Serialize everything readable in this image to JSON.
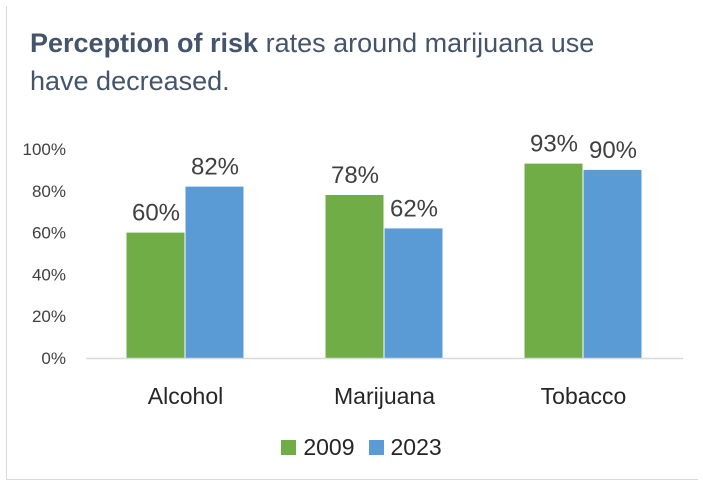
{
  "title": {
    "bold": "Perception of risk",
    "rest": " rates around marijuana use have decreased."
  },
  "chart_data": {
    "type": "bar",
    "categories": [
      "Alcohol",
      "Marijuana",
      "Tobacco"
    ],
    "series": [
      {
        "name": "2009",
        "values": [
          60,
          78,
          93
        ],
        "color": "#70ad47",
        "labels": [
          "60%",
          "78%",
          "93%"
        ]
      },
      {
        "name": "2023",
        "values": [
          82,
          62,
          90
        ],
        "color": "#5b9bd5",
        "labels": [
          "82%",
          "62%",
          "90%"
        ]
      }
    ],
    "ylim": [
      0,
      100
    ],
    "yticks": [
      "0%",
      "20%",
      "40%",
      "60%",
      "80%",
      "100%"
    ],
    "gridlines": false,
    "legend_position": "bottom",
    "axis_color": "#d9d9d9"
  }
}
